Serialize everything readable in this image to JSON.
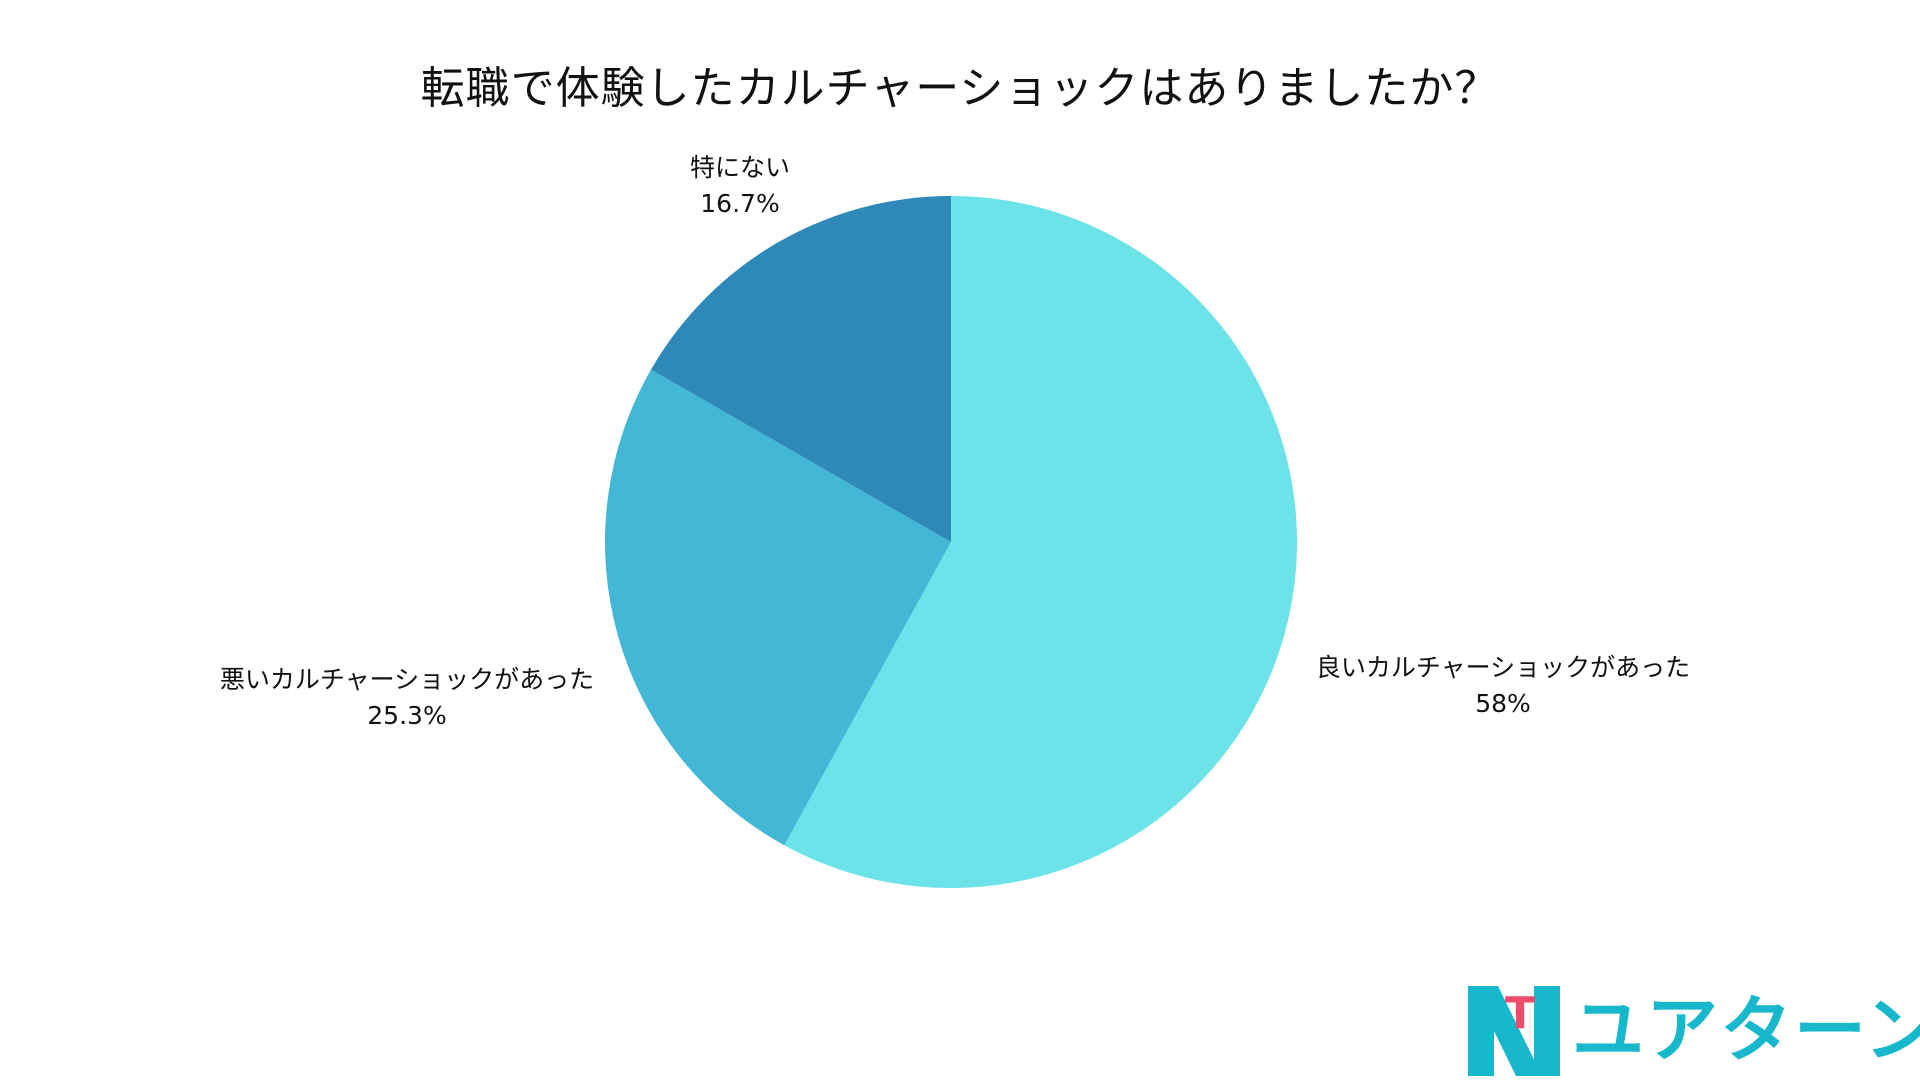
{
  "title": "転職で体験したカルチャーショックはありましたか？",
  "chart_data": {
    "type": "pie",
    "title": "転職で体験したカルチャーショックはありましたか？",
    "start_angle": "12 o'clock",
    "direction": "clockwise",
    "slices": [
      {
        "label": "良いカルチャーショックがあった",
        "value": 58,
        "value_label": "58%",
        "color": "#6BE3E8"
      },
      {
        "label": "悪いカルチャーショックがあった",
        "value": 25.3,
        "value_label": "25.3%",
        "color": "#43B7D6"
      },
      {
        "label": "特にない",
        "value": 16.7,
        "value_label": "16.7%",
        "color": "#2E89B8"
      }
    ]
  },
  "brand": {
    "logo_text": "ユアターン",
    "logo_letter": "T",
    "primary_color": "#18B8CC",
    "accent_color": "#F04B6A"
  }
}
